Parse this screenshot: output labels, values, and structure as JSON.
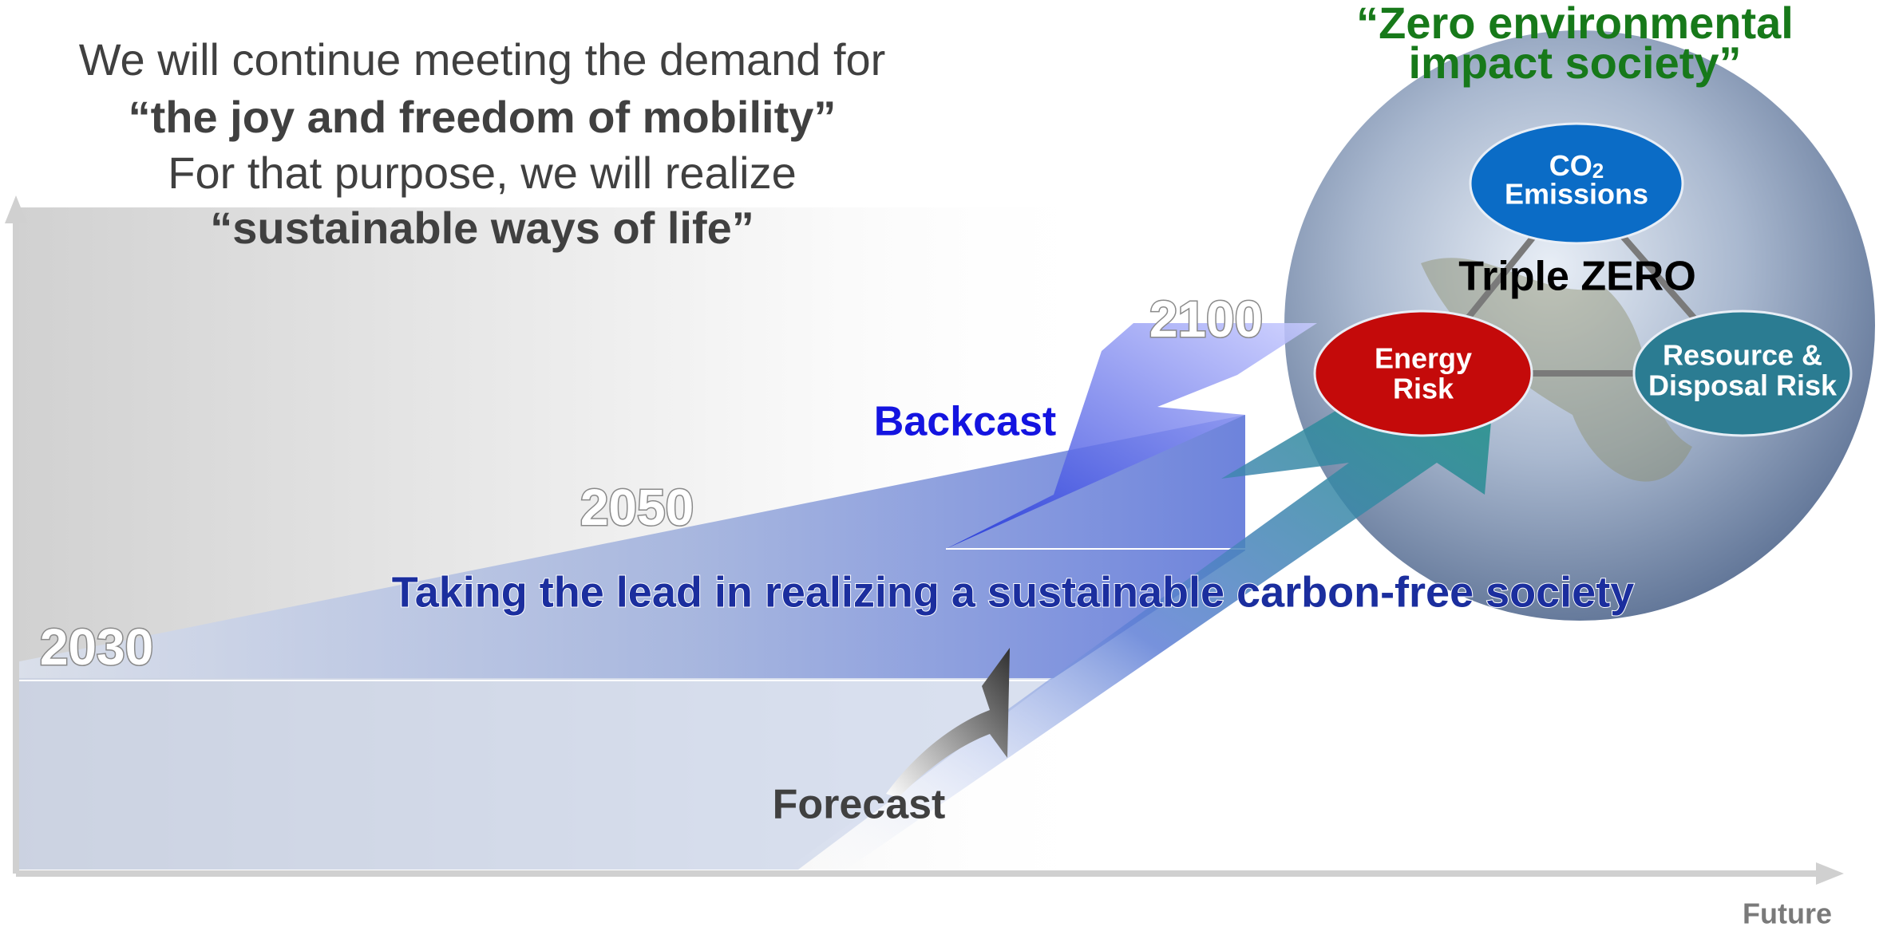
{
  "headline": {
    "line1": "We will continue meeting the demand for",
    "line2": "“the joy and freedom of mobility”",
    "line3": "For that purpose, we will realize",
    "line4": "“sustainable ways of life”"
  },
  "goal": {
    "line1": "“Zero environmental",
    "line2": "impact society”"
  },
  "triple_zero": {
    "label": "Triple ZERO",
    "co2": {
      "formula": "CO",
      "subscript": "2",
      "line2": "Emissions"
    },
    "energy": {
      "line1": "Energy",
      "line2": "Risk"
    },
    "resource": {
      "line1": "Resource &",
      "line2": "Disposal Risk"
    }
  },
  "years": [
    "2030",
    "2050",
    "2100"
  ],
  "backcast": "Backcast",
  "forecast": "Forecast",
  "lead": "Taking the lead in realizing a sustainable carbon-free society",
  "axis": {
    "x_label": "Future"
  }
}
